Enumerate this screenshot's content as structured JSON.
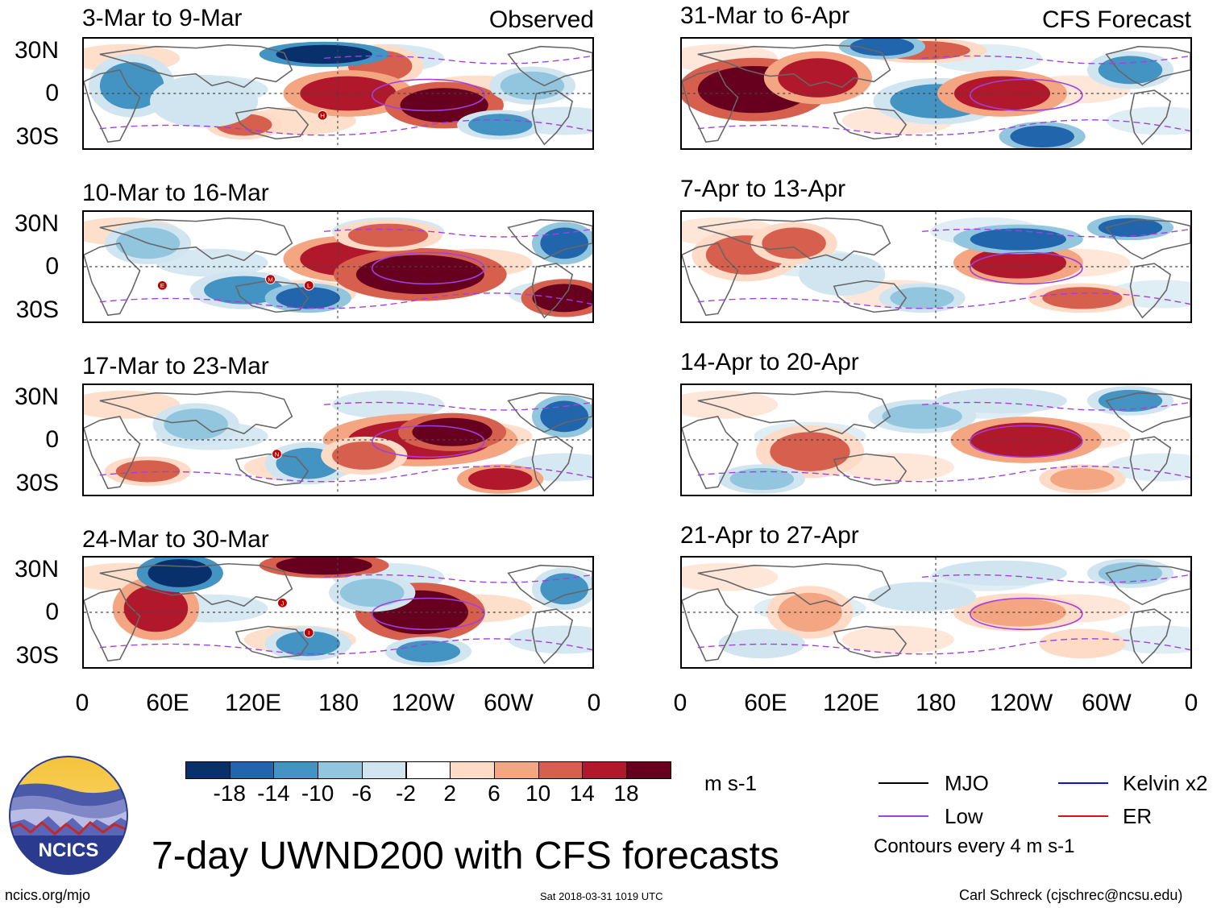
{
  "header": {
    "observed_label": "Observed",
    "forecast_label": "CFS Forecast"
  },
  "panels_left": [
    {
      "title": "3-Mar to 9-Mar",
      "storms": [
        "H"
      ]
    },
    {
      "title": "10-Mar to 16-Mar",
      "storms": [
        "E",
        "M",
        "L"
      ]
    },
    {
      "title": "17-Mar to 23-Mar",
      "storms": [
        "N"
      ]
    },
    {
      "title": "24-Mar to 30-Mar",
      "storms": [
        "J",
        "I"
      ]
    }
  ],
  "panels_right": [
    {
      "title": "31-Mar to 6-Apr"
    },
    {
      "title": "7-Apr to 13-Apr"
    },
    {
      "title": "14-Apr to 20-Apr"
    },
    {
      "title": "21-Apr to 27-Apr"
    }
  ],
  "axes": {
    "lat_labels": [
      "30N",
      "0",
      "30S"
    ],
    "lon_labels": [
      "0",
      "60E",
      "120E",
      "180",
      "120W",
      "60W",
      "0"
    ]
  },
  "colorbar": {
    "colors": [
      "#08306b",
      "#2166ac",
      "#4393c3",
      "#92c5de",
      "#d1e5f0",
      "#ffffff",
      "#fddbc7",
      "#f4a582",
      "#d6604d",
      "#b2182b",
      "#67001f"
    ],
    "ticks": [
      "-18",
      "-14",
      "-10",
      "-6",
      "-2",
      "2",
      "6",
      "10",
      "14",
      "18"
    ],
    "units": "m s-1"
  },
  "legend": {
    "items": [
      {
        "label": "MJO",
        "color": "#000000"
      },
      {
        "label": "Kelvin x2",
        "color": "#1010e0"
      },
      {
        "label": "Low",
        "color": "#a040e0"
      },
      {
        "label": "ER",
        "color": "#e01010"
      }
    ],
    "contours_note": "Contours every 4 m s-1"
  },
  "logo": {
    "text": "NCICS"
  },
  "title": "7-day UWND200 with CFS forecasts",
  "footer": {
    "url": "ncics.org/mjo",
    "timestamp": "Sat 2018-03-31 1019 UTC",
    "author": "Carl Schreck (cjschrec@ncsu.edu)"
  }
}
